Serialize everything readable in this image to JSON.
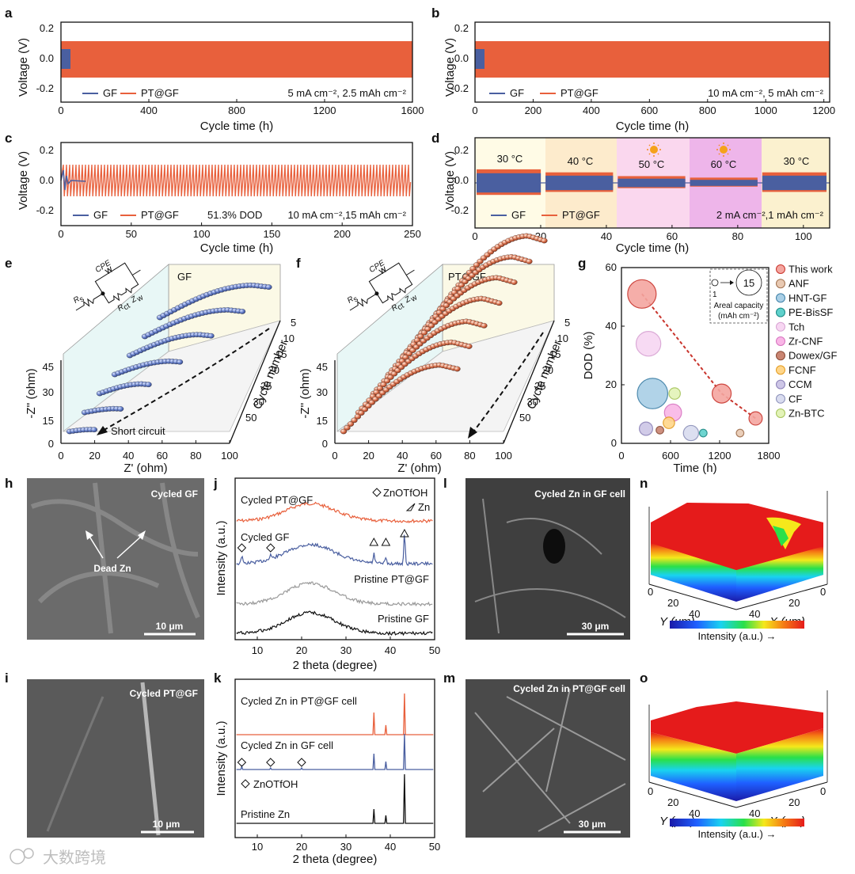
{
  "colors": {
    "gf": "#4a5fa0",
    "pt": "#e8603c",
    "black": "#111111",
    "gray": "#999999"
  },
  "panels": {
    "a": {
      "label": "a",
      "ylabel": "Voltage (V)",
      "xlabel": "Cycle time (h)",
      "xticks": [
        "0",
        "400",
        "800",
        "1200",
        "1600"
      ],
      "yticks": [
        "0.2",
        "0.0",
        "-0.2"
      ],
      "legend": [
        "GF",
        "PT@GF"
      ],
      "cond": "5 mA cm⁻², 2.5 mAh cm⁻²"
    },
    "b": {
      "label": "b",
      "ylabel": "Voltage (V)",
      "xlabel": "Cycle time (h)",
      "xticks": [
        "0",
        "200",
        "400",
        "600",
        "800",
        "1000",
        "1200"
      ],
      "yticks": [
        "0.2",
        "0.0",
        "-0.2"
      ],
      "legend": [
        "GF",
        "PT@GF"
      ],
      "cond": "10 mA cm⁻², 5 mAh cm⁻²"
    },
    "c": {
      "label": "c",
      "ylabel": "Voltage (V)",
      "xlabel": "Cycle time (h)",
      "xticks": [
        "0",
        "50",
        "100",
        "150",
        "200",
        "250"
      ],
      "yticks": [
        "0.2",
        "0.0",
        "-0.2"
      ],
      "legend": [
        "GF",
        "PT@GF"
      ],
      "dod": "51.3% DOD",
      "cond": "10 mA cm⁻²,15 mAh cm⁻²"
    },
    "d": {
      "label": "d",
      "ylabel": "Voltage (V)",
      "xlabel": "Cycle time (h)",
      "xticks": [
        "0",
        "20",
        "40",
        "60",
        "80",
        "100"
      ],
      "yticks": [
        "0.2",
        "0.0",
        "-0.2"
      ],
      "legend": [
        "GF",
        "PT@GF"
      ],
      "cond": "2 mA cm⁻²,1 mAh cm⁻²",
      "temps": [
        "30 °C",
        "40 °C",
        "50 °C",
        "60 °C",
        "30 °C"
      ]
    },
    "e": {
      "label": "e",
      "title": "GF",
      "ylabel": "-Z'' (ohm)",
      "xlabel": "Z' (ohm)",
      "zlabel": "Cycle number",
      "xticks": [
        "0",
        "20",
        "40",
        "60",
        "80",
        "100"
      ],
      "yticks": [
        "0",
        "15",
        "30",
        "45"
      ],
      "zticks": [
        "5",
        "10",
        "15",
        "20",
        "25",
        "30",
        "50"
      ],
      "annot": "Short circuit",
      "circuit": {
        "rs": "R",
        "rs_sub": "s",
        "cpe": "CPE",
        "rct": "R",
        "rct_sub": "ct",
        "zw": "Z",
        "zw_sub": "w"
      }
    },
    "f": {
      "label": "f",
      "title": "PT@GF",
      "ylabel": "-Z'' (ohm)",
      "xlabel": "Z' (ohm)",
      "zlabel": "Cycle number",
      "xticks": [
        "0",
        "20",
        "40",
        "60",
        "80",
        "100"
      ],
      "yticks": [
        "0",
        "15",
        "30",
        "45"
      ],
      "zticks": [
        "5",
        "10",
        "15",
        "20",
        "25",
        "30",
        "50"
      ],
      "circuit": {
        "rs": "R",
        "rs_sub": "s",
        "cpe": "CPE",
        "rct": "R",
        "rct_sub": "ct",
        "zw": "Z",
        "zw_sub": "w"
      }
    },
    "g": {
      "label": "g",
      "ylabel": "DOD (%)",
      "xlabel": "Time (h)",
      "xticks": [
        "0",
        "600",
        "1200",
        "1800"
      ],
      "yticks": [
        "0",
        "20",
        "40",
        "60"
      ],
      "inset": {
        "small": "1",
        "big": "15",
        "caption": "Areal capacity",
        "unit": "(mAh cm⁻²)"
      },
      "legend": [
        "This work",
        "ANF",
        "HNT-GF",
        "PE-BisSF",
        "Tch",
        "Zr-CNF",
        "Dowex/GF",
        "FCNF",
        "CCM",
        "CF",
        "Zn-BTC"
      ]
    },
    "h": {
      "label": "h",
      "title": "Cycled GF",
      "annot": "Dead Zn",
      "scale": "10 μm"
    },
    "i": {
      "label": "i",
      "title": "Cycled PT@GF",
      "scale": "10 μm"
    },
    "j": {
      "label": "j",
      "ylabel": "Intensity (a.u.)",
      "xlabel": "2 theta (degree)",
      "xticks": [
        "10",
        "20",
        "30",
        "40",
        "50"
      ],
      "traces": [
        "Cycled PT@GF",
        "Cycled GF",
        "Pristine PT@GF",
        "Pristine GF"
      ],
      "legend": [
        "ZnOTfOH",
        "Zn"
      ]
    },
    "k": {
      "label": "k",
      "ylabel": "Intensity (a.u.)",
      "xlabel": "2 theta (degree)",
      "xticks": [
        "10",
        "20",
        "30",
        "40",
        "50"
      ],
      "traces": [
        "Cycled Zn in PT@GF cell",
        "Cycled Zn in GF cell",
        "Pristine Zn"
      ],
      "legend": "ZnOTfOH"
    },
    "l": {
      "label": "l",
      "title": "Cycled Zn in GF cell",
      "scale": "30 μm"
    },
    "m": {
      "label": "m",
      "title": "Cycled Zn in PT@GF cell",
      "scale": "30 μm"
    },
    "n": {
      "label": "n",
      "ylabel": "Y (μm)",
      "xlabel": "X (μm)",
      "yticks": [
        "0",
        "20",
        "40"
      ],
      "xticks": [
        "0",
        "20",
        "40"
      ],
      "cbar": "Intensity (a.u.) →"
    },
    "o": {
      "label": "o",
      "ylabel": "Y (μm)",
      "xlabel": "X (μm)",
      "yticks": [
        "0",
        "20",
        "40"
      ],
      "xticks": [
        "0",
        "20",
        "40"
      ],
      "cbar": "Intensity (a.u.) →"
    }
  },
  "watermark": "大数跨境",
  "chart_data": [
    {
      "panel": "a",
      "type": "line",
      "xlim": [
        0,
        1600
      ],
      "ylim": [
        -0.3,
        0.3
      ],
      "series": [
        {
          "name": "GF",
          "x_end": 30,
          "amplitude": 0.07
        },
        {
          "name": "PT@GF",
          "x_end": 1600,
          "amplitude": 0.12
        }
      ]
    },
    {
      "panel": "b",
      "type": "line",
      "xlim": [
        0,
        1220
      ],
      "ylim": [
        -0.3,
        0.3
      ],
      "series": [
        {
          "name": "GF",
          "x_end": 30,
          "amplitude": 0.08
        },
        {
          "name": "PT@GF",
          "x_end": 1220,
          "amplitude": 0.12
        }
      ]
    },
    {
      "panel": "c",
      "type": "line",
      "xlim": [
        0,
        250
      ],
      "ylim": [
        -0.3,
        0.3
      ],
      "series": [
        {
          "name": "GF",
          "x_end": 18,
          "amplitude": 0.02
        },
        {
          "name": "PT@GF",
          "x_end": 250,
          "amplitude": 0.12
        }
      ]
    },
    {
      "panel": "d",
      "type": "line",
      "xlim": [
        0,
        108
      ],
      "ylim": [
        -0.3,
        0.3
      ],
      "segments": [
        {
          "temp": "30 °C",
          "from": 0,
          "to": 21,
          "amp": 0.08
        },
        {
          "temp": "40 °C",
          "from": 21,
          "to": 43,
          "amp": 0.06
        },
        {
          "temp": "50 °C",
          "from": 43,
          "to": 65,
          "amp": 0.035
        },
        {
          "temp": "60 °C",
          "from": 65,
          "to": 87,
          "amp": 0.025
        },
        {
          "temp": "30 °C",
          "from": 87,
          "to": 108,
          "amp": 0.06
        }
      ]
    },
    {
      "panel": "e",
      "type": "scatter",
      "cycles": [
        5,
        10,
        15,
        20,
        25,
        30,
        50
      ],
      "arc_end_zprime": [
        67,
        60,
        50,
        40,
        30,
        22,
        15
      ],
      "arc_height": [
        17,
        14,
        11,
        7,
        5,
        2,
        1
      ]
    },
    {
      "panel": "f",
      "type": "scatter",
      "cycles": [
        5,
        10,
        15,
        20,
        25,
        30,
        50
      ],
      "arc_end_zprime": [
        68,
        68,
        68,
        68,
        68,
        68,
        70
      ],
      "arc_height": [
        43,
        42,
        41,
        40,
        38,
        37,
        35
      ]
    },
    {
      "panel": "g",
      "type": "scatter",
      "xlim": [
        0,
        1800
      ],
      "ylim": [
        0,
        60
      ],
      "points": [
        {
          "name": "This work",
          "x": 250,
          "y": 51,
          "r": 15
        },
        {
          "name": "This work",
          "x": 1225,
          "y": 17,
          "r": 10
        },
        {
          "name": "This work",
          "x": 1640,
          "y": 8.5,
          "r": 7
        },
        {
          "name": "ANF",
          "x": 1450,
          "y": 3.5,
          "r": 4
        },
        {
          "name": "HNT-GF",
          "x": 380,
          "y": 17,
          "r": 16
        },
        {
          "name": "PE-BisSF",
          "x": 1000,
          "y": 3.5,
          "r": 4
        },
        {
          "name": "Tch",
          "x": 330,
          "y": 34,
          "r": 13
        },
        {
          "name": "Zr-CNF",
          "x": 630,
          "y": 10.5,
          "r": 9
        },
        {
          "name": "Dowex/GF",
          "x": 470,
          "y": 4.5,
          "r": 4
        },
        {
          "name": "FCNF",
          "x": 580,
          "y": 7,
          "r": 6
        },
        {
          "name": "CCM",
          "x": 300,
          "y": 5,
          "r": 7
        },
        {
          "name": "CF",
          "x": 850,
          "y": 3.5,
          "r": 8
        },
        {
          "name": "Zn-BTC",
          "x": 650,
          "y": 17,
          "r": 6
        }
      ]
    },
    {
      "panel": "j",
      "type": "line",
      "xlim": [
        5,
        50
      ],
      "peaks_cycled_gf": [
        {
          "x": 6.5,
          "mark": "diamond"
        },
        {
          "x": 13,
          "mark": "diamond"
        },
        {
          "x": 36.3,
          "mark": "triangle"
        },
        {
          "x": 39,
          "mark": "triangle"
        },
        {
          "x": 43.2,
          "mark": "triangle"
        }
      ]
    },
    {
      "panel": "k",
      "type": "line",
      "xlim": [
        5,
        50
      ],
      "peaks_zn": [
        36.3,
        39,
        43.2
      ],
      "peaks_znotfoh": [
        6.5,
        13,
        20
      ]
    }
  ]
}
